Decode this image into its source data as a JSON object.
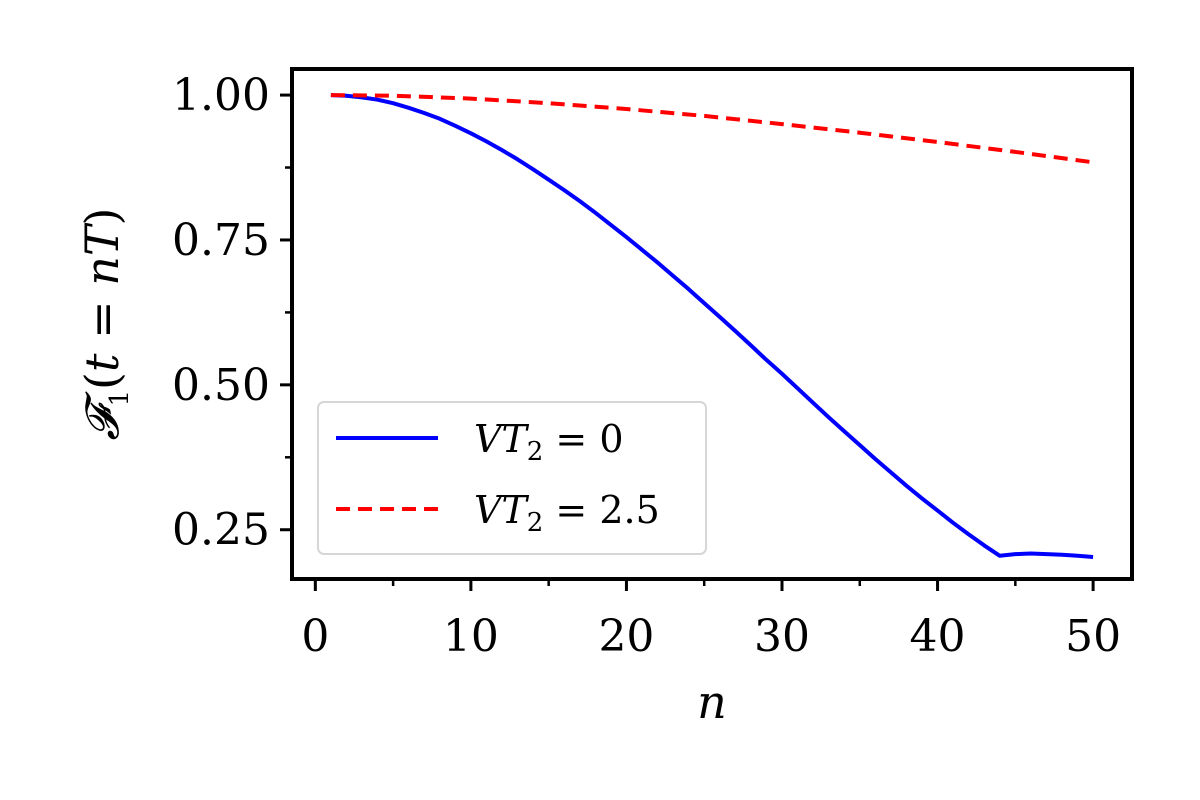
{
  "chart_data": {
    "type": "line",
    "xlabel": "n",
    "ylabel": "F1(t = nT)",
    "xlim": [
      -1.5,
      52.5
    ],
    "ylim": [
      0.165,
      1.045
    ],
    "xticks": [
      0,
      10,
      20,
      30,
      40,
      50
    ],
    "xtick_labels": [
      "0",
      "10",
      "20",
      "30",
      "40",
      "50"
    ],
    "yticks": [
      0.25,
      0.5,
      0.75,
      1.0
    ],
    "ytick_labels": [
      "0.25",
      "0.50",
      "0.75",
      "1.00"
    ],
    "x_minor_step": 5,
    "y_minor_step": 0.125,
    "grid": false,
    "legend_position": "lower-left",
    "series": [
      {
        "name": "VT2 = 0",
        "name_parts": {
          "main": "VT",
          "sub": "2",
          "rest": " = 0"
        },
        "color": "#0000ff",
        "dash": "solid",
        "x": [
          1,
          2,
          3,
          4,
          5,
          6,
          7,
          8,
          9,
          10,
          11,
          12,
          13,
          14,
          15,
          16,
          17,
          18,
          19,
          20,
          21,
          22,
          23,
          24,
          25,
          26,
          27,
          28,
          29,
          30,
          31,
          32,
          33,
          34,
          35,
          36,
          37,
          38,
          39,
          40,
          41,
          42,
          43,
          44,
          45,
          46,
          47,
          48,
          49,
          50
        ],
        "y": [
          1.0,
          0.999,
          0.996,
          0.992,
          0.986,
          0.978,
          0.969,
          0.959,
          0.947,
          0.934,
          0.92,
          0.905,
          0.889,
          0.872,
          0.854,
          0.836,
          0.817,
          0.797,
          0.776,
          0.755,
          0.733,
          0.711,
          0.688,
          0.665,
          0.641,
          0.617,
          0.593,
          0.568,
          0.543,
          0.519,
          0.494,
          0.469,
          0.444,
          0.42,
          0.396,
          0.372,
          0.349,
          0.326,
          0.304,
          0.283,
          0.262,
          0.242,
          0.223,
          0.205,
          0.208,
          0.209,
          0.208,
          0.207,
          0.205,
          0.203
        ]
      },
      {
        "name": "VT2 = 2.5",
        "name_parts": {
          "main": "VT",
          "sub": "2",
          "rest": " = 2.5"
        },
        "color": "#ff0000",
        "dash": "dashed",
        "x": [
          1,
          5,
          10,
          15,
          20,
          25,
          30,
          35,
          40,
          45,
          50
        ],
        "y": [
          1.0,
          0.999,
          0.994,
          0.986,
          0.976,
          0.964,
          0.95,
          0.935,
          0.919,
          0.902,
          0.884
        ]
      }
    ]
  }
}
